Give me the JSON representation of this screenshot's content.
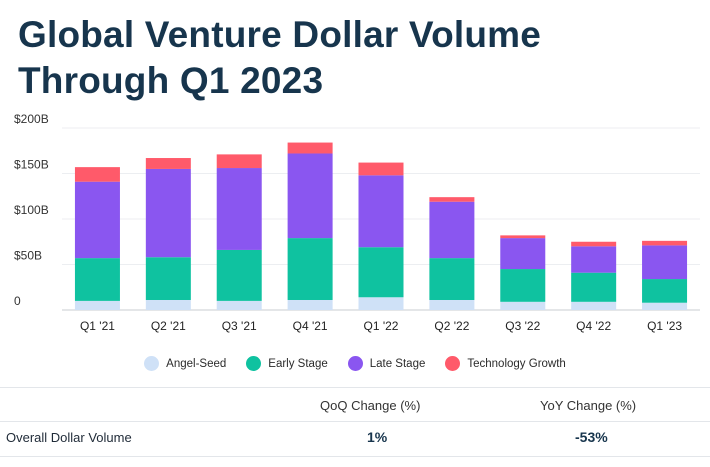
{
  "title": "Global Venture Dollar Volume Through Q1 2023",
  "chart_data": {
    "type": "bar",
    "stacked": true,
    "categories": [
      "Q1 '21",
      "Q2 '21",
      "Q3 '21",
      "Q4 '21",
      "Q1 '22",
      "Q2 '22",
      "Q3 '22",
      "Q4 '22",
      "Q1 '23"
    ],
    "series": [
      {
        "name": "Angel-Seed",
        "color": "#cfe1f7",
        "values": [
          10,
          11,
          10,
          11,
          14,
          11,
          9,
          9,
          8
        ]
      },
      {
        "name": "Early Stage",
        "color": "#0fc2a0",
        "values": [
          47,
          47,
          56,
          68,
          55,
          46,
          36,
          32,
          26
        ]
      },
      {
        "name": "Late Stage",
        "color": "#8a56f0",
        "values": [
          84,
          97,
          90,
          93,
          79,
          62,
          34,
          29,
          37
        ]
      },
      {
        "name": "Technology Growth",
        "color": "#ff5a6a",
        "values": [
          16,
          12,
          15,
          12,
          14,
          5,
          3,
          5,
          5
        ]
      }
    ],
    "yticks": [
      "0",
      "$50B",
      "$100B",
      "$150B",
      "$200B"
    ],
    "ylim": [
      0,
      200
    ],
    "grid": true,
    "legend": "bottom-center"
  },
  "table": {
    "headers": [
      "QoQ Change (%)",
      "YoY Change (%)"
    ],
    "rows": [
      {
        "label": "Overall Dollar Volume",
        "values": [
          "1%",
          "-53%"
        ]
      }
    ]
  }
}
